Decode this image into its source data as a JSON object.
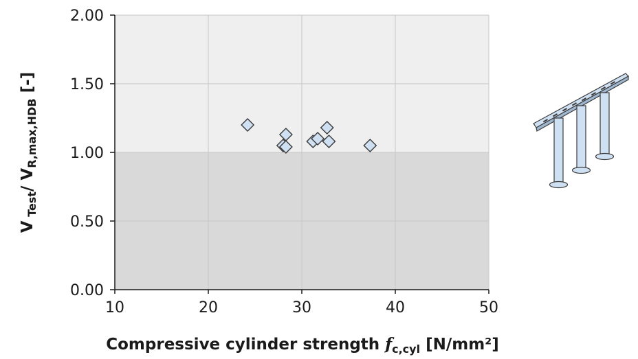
{
  "chart_data": {
    "type": "scatter",
    "xlabel": {
      "prefix": "Compressive cylinder strength ",
      "symbol": "f",
      "symbol_sub": "c,cyl",
      "unit": "  [N/mm²]"
    },
    "ylabel": {
      "main1": "V",
      "sub1": " Test",
      "main2": "/ V",
      "sub2": "R,max,HDB",
      "unit": " [-]"
    },
    "xlim": [
      10,
      50
    ],
    "ylim": [
      0,
      2
    ],
    "x_ticks": [
      "10",
      "20",
      "30",
      "40",
      "50"
    ],
    "y_ticks": [
      "0.00",
      "0.50",
      "1.00",
      "1.50",
      "2.00"
    ],
    "grid": true,
    "shaded_region_below_y": 1.0,
    "colors": {
      "plot_background": "#efefef",
      "shaded_region": "#d9d9d9",
      "grid": "#c6c6c6",
      "marker_fill": "#cfe0f3",
      "marker_stroke": "#3a3a3a"
    },
    "points": [
      {
        "x": 24.2,
        "y": 1.2
      },
      {
        "x": 28.0,
        "y": 1.05
      },
      {
        "x": 28.3,
        "y": 1.13
      },
      {
        "x": 28.3,
        "y": 1.04
      },
      {
        "x": 31.2,
        "y": 1.08
      },
      {
        "x": 31.7,
        "y": 1.1
      },
      {
        "x": 32.7,
        "y": 1.18
      },
      {
        "x": 32.9,
        "y": 1.08
      },
      {
        "x": 37.3,
        "y": 1.05
      }
    ]
  },
  "illustration": {
    "icon": "shear-dowel-rail-icon",
    "colors": {
      "rail": "#cfe0f3",
      "outline": "#3a3a3a"
    }
  }
}
